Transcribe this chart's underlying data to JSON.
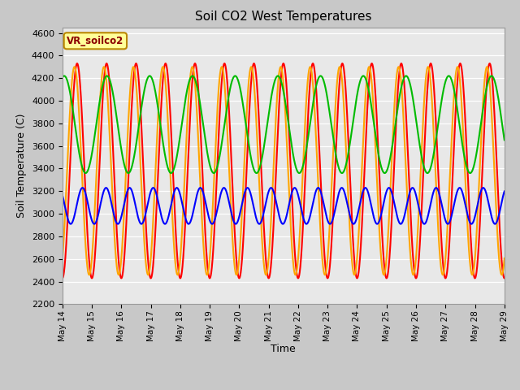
{
  "title": "Soil CO2 West Temperatures",
  "xlabel": "Time",
  "ylabel": "Soil Temperature (C)",
  "ylim": [
    2200,
    4650
  ],
  "yticks": [
    2200,
    2400,
    2600,
    2800,
    3000,
    3200,
    3400,
    3600,
    3800,
    4000,
    4200,
    4400,
    4600
  ],
  "x_start": 14,
  "x_end": 29,
  "x_ticks": [
    14,
    15,
    16,
    17,
    18,
    19,
    20,
    21,
    22,
    23,
    24,
    25,
    26,
    27,
    28,
    29
  ],
  "x_tick_labels": [
    "May 14",
    "May 15",
    "May 16",
    "May 17",
    "May 18",
    "May 19",
    "May 20",
    "May 21",
    "May 22",
    "May 23",
    "May 24",
    "May 25",
    "May 26",
    "May 27",
    "May 28",
    "May 29"
  ],
  "colors": {
    "TCW_1": "#FF0000",
    "TCW_2": "#FFA500",
    "TCW_3": "#00BB00",
    "TCW_4": "#0000FF"
  },
  "legend_label": "VR_soilco2",
  "fig_facecolor": "#C8C8C8",
  "ax_facecolor": "#E8E8E8",
  "line_width": 1.5,
  "TCW_1": {
    "amplitude": 950,
    "baseline": 3380,
    "period": 1.0,
    "phase": -1.57,
    "phase2": 0.0
  },
  "TCW_2": {
    "amplitude": 920,
    "baseline": 3380,
    "period": 1.0,
    "phase": -1.0,
    "phase2": 0.0
  },
  "TCW_3": {
    "amplitude": 430,
    "baseline": 3790,
    "period": 1.45,
    "phase": 1.3,
    "phase2": 0.0
  },
  "TCW_4": {
    "amplitude": 160,
    "baseline": 3070,
    "period": 0.8,
    "phase": 2.5,
    "phase2": 0.0
  }
}
